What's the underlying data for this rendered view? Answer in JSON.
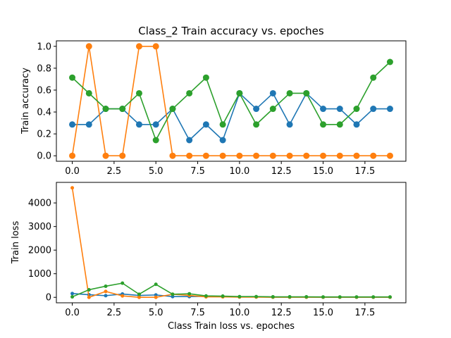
{
  "chart_data": [
    {
      "type": "line",
      "title": "Class_2 Train accuracy vs. epoches",
      "xlabel": "",
      "ylabel": "Train accuracy",
      "xlim": [
        -0.95,
        19.95
      ],
      "ylim": [
        -0.05,
        1.05
      ],
      "xticks": [
        0,
        2.5,
        5,
        7.5,
        10,
        12.5,
        15,
        17.5
      ],
      "xtick_labels": [
        "0.0",
        "2.5",
        "5.0",
        "7.5",
        "10.0",
        "12.5",
        "15.0",
        "17.5"
      ],
      "yticks": [
        0,
        0.2,
        0.4,
        0.6,
        0.8,
        1.0
      ],
      "ytick_labels": [
        "0.0",
        "0.2",
        "0.4",
        "0.6",
        "0.8",
        "1.0"
      ],
      "grid": false,
      "marker": "large",
      "x": [
        0,
        1,
        2,
        3,
        4,
        5,
        6,
        7,
        8,
        9,
        10,
        11,
        12,
        13,
        14,
        15,
        16,
        17,
        18,
        19
      ],
      "series": [
        {
          "color": "#1f77b4",
          "values": [
            0.286,
            0.286,
            0.429,
            0.429,
            0.286,
            0.286,
            0.429,
            0.143,
            0.286,
            0.143,
            0.571,
            0.429,
            0.571,
            0.286,
            0.571,
            0.429,
            0.429,
            0.286,
            0.429,
            0.429
          ]
        },
        {
          "color": "#ff7f0e",
          "values": [
            0,
            1,
            0,
            0,
            1,
            1,
            0,
            0,
            0,
            0,
            0,
            0,
            0,
            0,
            0,
            0,
            0,
            0,
            0,
            0
          ]
        },
        {
          "color": "#2ca02c",
          "values": [
            0.714,
            0.571,
            0.429,
            0.429,
            0.571,
            0.143,
            0.429,
            0.571,
            0.714,
            0.286,
            0.571,
            0.286,
            0.429,
            0.571,
            0.571,
            0.286,
            0.286,
            0.429,
            0.714,
            0.857
          ]
        }
      ]
    },
    {
      "type": "line",
      "title": "",
      "xlabel": "Class Train loss vs. epoches",
      "ylabel": "Train loss",
      "xlim": [
        -0.95,
        19.95
      ],
      "ylim": [
        -232,
        4870
      ],
      "xticks": [
        0,
        2.5,
        5,
        7.5,
        10,
        12.5,
        15,
        17.5
      ],
      "xtick_labels": [
        "0.0",
        "2.5",
        "5.0",
        "7.5",
        "10.0",
        "12.5",
        "15.0",
        "17.5"
      ],
      "yticks": [
        0,
        1000,
        2000,
        3000,
        4000
      ],
      "ytick_labels": [
        "0",
        "1000",
        "2000",
        "3000",
        "4000"
      ],
      "grid": false,
      "marker": "small",
      "x": [
        0,
        1,
        2,
        3,
        4,
        5,
        6,
        7,
        8,
        9,
        10,
        11,
        12,
        13,
        14,
        15,
        16,
        17,
        18,
        19
      ],
      "series": [
        {
          "color": "#1f77b4",
          "values": [
            160,
            110,
            70,
            140,
            80,
            100,
            30,
            30,
            40,
            30,
            20,
            20,
            10,
            10,
            10,
            5,
            5,
            5,
            5,
            5
          ]
        },
        {
          "color": "#ff7f0e",
          "values": [
            4640,
            0,
            250,
            60,
            0,
            0,
            130,
            80,
            20,
            20,
            10,
            10,
            5,
            5,
            5,
            5,
            5,
            5,
            5,
            5
          ]
        },
        {
          "color": "#2ca02c",
          "values": [
            20,
            320,
            470,
            600,
            130,
            550,
            130,
            150,
            60,
            50,
            30,
            30,
            20,
            20,
            20,
            15,
            15,
            15,
            15,
            15
          ]
        }
      ]
    }
  ]
}
